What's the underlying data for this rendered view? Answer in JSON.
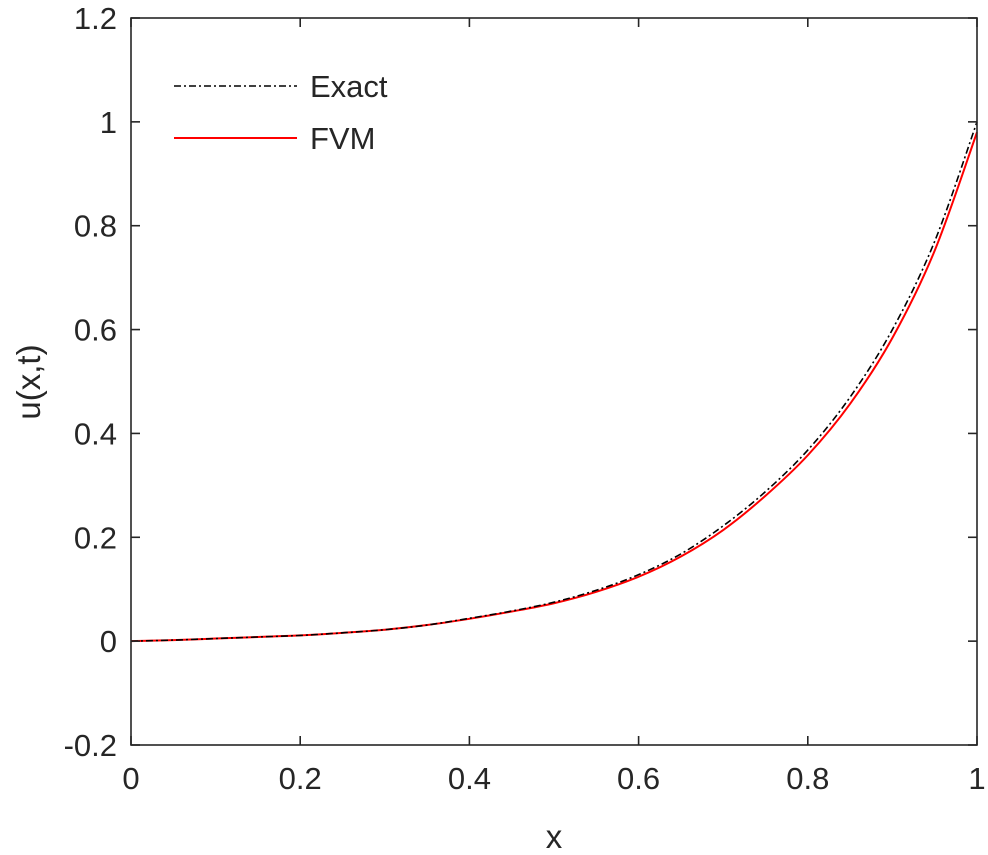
{
  "chart_data": {
    "type": "line",
    "title": "",
    "xlabel": "x",
    "ylabel": "u(x,t)",
    "xlim": [
      0,
      1
    ],
    "ylim": [
      -0.2,
      1.2
    ],
    "xticks": [
      0,
      0.2,
      0.4,
      0.6,
      0.8,
      1
    ],
    "xtick_labels": [
      "0",
      "0.2",
      "0.4",
      "0.6",
      "0.8",
      "1"
    ],
    "yticks": [
      -0.2,
      0,
      0.2,
      0.4,
      0.6,
      0.8,
      1,
      1.2
    ],
    "ytick_labels": [
      "-0.2",
      "0",
      "0.2",
      "0.4",
      "0.6",
      "0.8",
      "1",
      "1.2"
    ],
    "grid": false,
    "legend_position": "top-left",
    "series": [
      {
        "name": "Exact",
        "color": "#000000",
        "style": "dash-dot",
        "x": [
          0,
          0.05,
          0.1,
          0.15,
          0.2,
          0.25,
          0.3,
          0.35,
          0.4,
          0.45,
          0.5,
          0.55,
          0.6,
          0.65,
          0.7,
          0.75,
          0.8,
          0.85,
          0.9,
          0.95,
          1
        ],
        "y": [
          0,
          0.002,
          0.005,
          0.008,
          0.011,
          0.016,
          0.022,
          0.031,
          0.044,
          0.058,
          0.075,
          0.098,
          0.128,
          0.168,
          0.222,
          0.288,
          0.368,
          0.47,
          0.6,
          0.77,
          1.0
        ]
      },
      {
        "name": "FVM",
        "color": "#ff0000",
        "style": "solid",
        "x": [
          0,
          0.05,
          0.1,
          0.15,
          0.2,
          0.25,
          0.3,
          0.35,
          0.4,
          0.45,
          0.5,
          0.55,
          0.6,
          0.65,
          0.7,
          0.75,
          0.8,
          0.85,
          0.9,
          0.95,
          1
        ],
        "y": [
          0,
          0.002,
          0.005,
          0.008,
          0.011,
          0.016,
          0.022,
          0.031,
          0.043,
          0.057,
          0.073,
          0.095,
          0.124,
          0.163,
          0.214,
          0.28,
          0.358,
          0.457,
          0.584,
          0.752,
          0.98
        ]
      }
    ]
  }
}
